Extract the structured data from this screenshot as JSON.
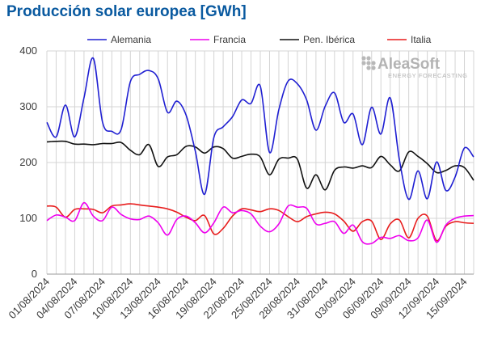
{
  "chart_data": {
    "type": "line",
    "title": "Producción solar europea [GWh]",
    "xlabel": "",
    "ylabel": "",
    "ylim": [
      0,
      400
    ],
    "yticks": [
      0,
      100,
      200,
      300,
      400
    ],
    "grid": true,
    "legend_position": "top",
    "x_start": "01/08/2024",
    "x_end": "16/09/2024",
    "x_tick_labels": [
      "01/08/2024",
      "04/08/2024",
      "07/08/2024",
      "10/08/2024",
      "13/08/2024",
      "16/08/2024",
      "19/08/2024",
      "22/08/2024",
      "25/08/2024",
      "28/08/2024",
      "31/08/2024",
      "03/09/2024",
      "06/09/2024",
      "09/09/2024",
      "12/09/2024",
      "15/09/2024"
    ],
    "x": [
      "01/08/2024",
      "02/08/2024",
      "03/08/2024",
      "04/08/2024",
      "05/08/2024",
      "06/08/2024",
      "07/08/2024",
      "08/08/2024",
      "09/08/2024",
      "10/08/2024",
      "11/08/2024",
      "12/08/2024",
      "13/08/2024",
      "14/08/2024",
      "15/08/2024",
      "16/08/2024",
      "17/08/2024",
      "18/08/2024",
      "19/08/2024",
      "20/08/2024",
      "21/08/2024",
      "22/08/2024",
      "23/08/2024",
      "24/08/2024",
      "25/08/2024",
      "26/08/2024",
      "27/08/2024",
      "28/08/2024",
      "29/08/2024",
      "30/08/2024",
      "31/08/2024",
      "01/09/2024",
      "02/09/2024",
      "03/09/2024",
      "04/09/2024",
      "05/09/2024",
      "06/09/2024",
      "07/09/2024",
      "08/09/2024",
      "09/09/2024",
      "10/09/2024",
      "11/09/2024",
      "12/09/2024",
      "13/09/2024",
      "14/09/2024",
      "15/09/2024",
      "16/09/2024"
    ],
    "series": [
      {
        "name": "Alemania",
        "color": "#1f1fd2",
        "values": [
          272,
          246,
          303,
          246,
          316,
          387,
          272,
          256,
          259,
          345,
          358,
          365,
          350,
          290,
          310,
          285,
          220,
          143,
          245,
          264,
          282,
          312,
          306,
          337,
          218,
          295,
          346,
          341,
          312,
          258,
          301,
          325,
          272,
          287,
          232,
          299,
          251,
          316,
          204,
          134,
          185,
          135,
          201,
          150,
          174,
          226,
          210
        ]
      },
      {
        "name": "Francia",
        "color": "#ee00ee",
        "values": [
          96,
          106,
          102,
          96,
          128,
          104,
          96,
          120,
          107,
          99,
          98,
          104,
          92,
          70,
          98,
          104,
          92,
          74,
          92,
          120,
          110,
          114,
          108,
          86,
          76,
          90,
          122,
          120,
          118,
          90,
          91,
          94,
          73,
          88,
          58,
          55,
          66,
          64,
          69,
          60,
          65,
          97,
          57,
          88,
          100,
          104,
          105
        ]
      },
      {
        "name": "Pen. Ibérica",
        "color": "#111111",
        "values": [
          237,
          238,
          238,
          233,
          233,
          232,
          234,
          234,
          236,
          222,
          214,
          232,
          193,
          210,
          214,
          229,
          228,
          217,
          228,
          225,
          208,
          211,
          215,
          210,
          178,
          206,
          208,
          206,
          154,
          178,
          151,
          186,
          192,
          190,
          194,
          191,
          211,
          196,
          185,
          219,
          211,
          198,
          182,
          186,
          194,
          191,
          168
        ]
      },
      {
        "name": "Italia",
        "color": "#e81c1c",
        "values": [
          122,
          120,
          102,
          116,
          117,
          116,
          110,
          122,
          124,
          126,
          124,
          122,
          120,
          117,
          111,
          102,
          96,
          105,
          72,
          82,
          104,
          117,
          115,
          112,
          117,
          114,
          103,
          94,
          103,
          108,
          111,
          108,
          95,
          77,
          94,
          95,
          62,
          90,
          97,
          65,
          100,
          104,
          60,
          86,
          94,
          92,
          91
        ]
      }
    ]
  },
  "logo": {
    "name": "AleaSoft",
    "tagline": "ENERGY FORECASTING"
  }
}
